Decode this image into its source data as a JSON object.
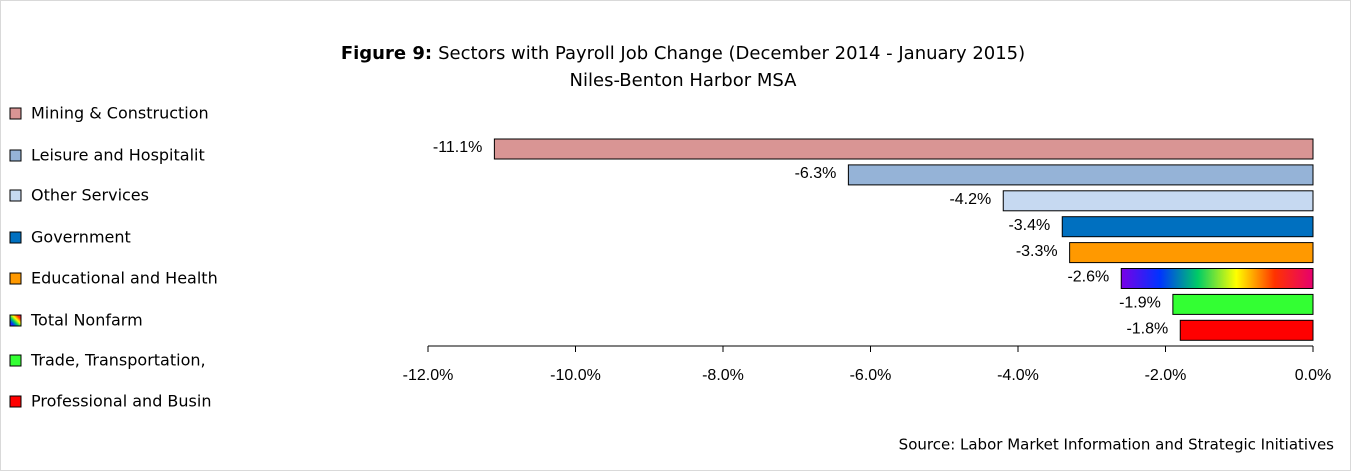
{
  "chart_data": {
    "type": "hbar",
    "title_label": "Figure 9:",
    "title": "Sectors with Payroll Job Change (December 2014 - January 2015)",
    "subtitle": "Niles-Benton Harbor MSA",
    "source": "Source: Labor Market Information and Strategic Initiatives",
    "categories": [
      "Mining & Construction",
      "Leisure and Hospitalit",
      "Other Services",
      "Government",
      "Educational and Health",
      "Total Nonfarm",
      "Trade, Transportation,",
      "Professional and Busin"
    ],
    "values": [
      -11.1,
      -6.3,
      -4.2,
      -3.4,
      -3.3,
      -2.6,
      -1.9,
      -1.8
    ],
    "value_labels": [
      "-11.1%",
      "-6.3%",
      "-4.2%",
      "-3.4%",
      "-3.3%",
      "-2.6%",
      "-1.9%",
      "-1.8%"
    ],
    "colors": [
      "#d99594",
      "#95b3d7",
      "#c6d9f1",
      "#0070c0",
      "#ff9900",
      [
        "#7a00e6",
        "#0033ff",
        "#00cc66",
        "#ffff00",
        "#ff3300",
        "#e6006e"
      ],
      "#33ff33",
      "#ff0000"
    ],
    "xlim": [
      -12,
      0
    ],
    "xticks": [
      {
        "value": -12,
        "label": "-12.0%"
      },
      {
        "value": -10,
        "label": "-10.0%"
      },
      {
        "value": -8,
        "label": "-8.0%"
      },
      {
        "value": -6,
        "label": "-6.0%"
      },
      {
        "value": -4,
        "label": "-4.0%"
      },
      {
        "value": -2,
        "label": "-2.0%"
      },
      {
        "value": 0,
        "label": "0.0%"
      }
    ],
    "legend": "left"
  }
}
